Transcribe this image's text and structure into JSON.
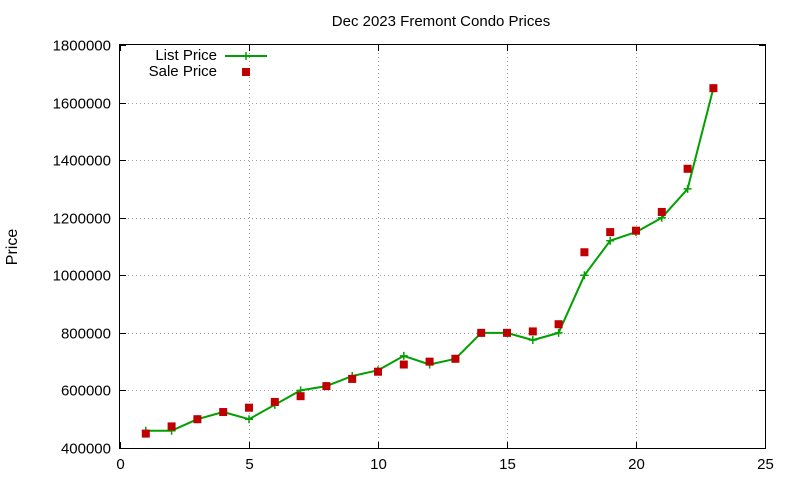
{
  "chart_data": {
    "type": "line",
    "title": "Dec 2023 Fremont Condo Prices",
    "xlabel": "",
    "ylabel": "Price",
    "xlim": [
      0,
      25
    ],
    "ylim": [
      400000,
      1800000
    ],
    "x_ticks": [
      0,
      5,
      10,
      15,
      20,
      25
    ],
    "y_ticks": [
      400000,
      600000,
      800000,
      1000000,
      1200000,
      1400000,
      1600000,
      1800000
    ],
    "grid": true,
    "legend_position": "top-left",
    "series": [
      {
        "name": "List Price",
        "kind": "line",
        "marker": "plus",
        "color": "#00a000",
        "x": [
          1,
          2,
          3,
          4,
          5,
          6,
          7,
          8,
          9,
          10,
          11,
          12,
          13,
          14,
          15,
          16,
          17,
          18,
          19,
          20,
          21,
          22,
          23
        ],
        "y": [
          460000,
          460000,
          500000,
          525000,
          500000,
          550000,
          600000,
          615000,
          650000,
          670000,
          720000,
          690000,
          710000,
          800000,
          800000,
          775000,
          800000,
          1000000,
          1120000,
          1150000,
          1200000,
          1300000,
          1650000
        ]
      },
      {
        "name": "Sale Price",
        "kind": "scatter",
        "marker": "square",
        "color": "#c00000",
        "x": [
          1,
          2,
          3,
          4,
          5,
          6,
          7,
          8,
          9,
          10,
          11,
          12,
          13,
          14,
          15,
          16,
          17,
          18,
          19,
          20,
          21,
          22,
          23
        ],
        "y": [
          450000,
          475000,
          500000,
          525000,
          540000,
          560000,
          580000,
          615000,
          640000,
          665000,
          690000,
          700000,
          710000,
          800000,
          800000,
          805000,
          830000,
          1080000,
          1150000,
          1155000,
          1220000,
          1370000,
          1650000
        ]
      }
    ]
  }
}
